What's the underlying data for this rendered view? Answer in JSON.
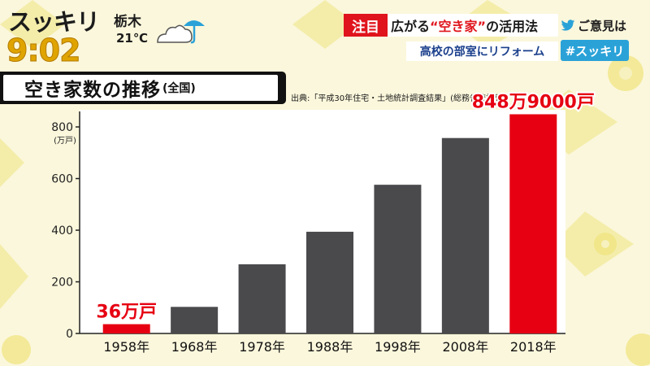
{
  "program": {
    "logo": "スッキリ",
    "clock": "9:02"
  },
  "weather": {
    "location": "栃木",
    "temperature": "21℃",
    "icon": "cloud-umbrella-icon"
  },
  "headline": {
    "badge": "注目",
    "text_before": "広がる",
    "text_emphasis": "“空き家”",
    "text_after": "の活用法",
    "sub": "高校の部室にリフォーム",
    "feedback": "ご意見は",
    "hashtag": "#スッキリ"
  },
  "chart_title": {
    "main": "空き家数の推移",
    "suffix": "(全国)",
    "source": "出典:「平成30年住宅・土地統計調査結果」(総務省統計局)"
  },
  "chart_data": {
    "type": "bar",
    "title": "空き家数の推移(全国)",
    "ylabel": "(万戸)",
    "xlabel": "",
    "ylim": [
      0,
      860
    ],
    "yticks": [
      0,
      200,
      400,
      600,
      800
    ],
    "categories": [
      "1958年",
      "1968年",
      "1978年",
      "1988年",
      "1998年",
      "2008年",
      "2018年"
    ],
    "values": [
      36,
      103,
      268,
      394,
      576,
      757,
      849
    ],
    "highlight_indices": [
      0,
      6
    ],
    "annotations": [
      {
        "index": 0,
        "text": "36万戸"
      },
      {
        "index": 6,
        "text": "848万9000戸"
      }
    ],
    "colors": {
      "default": "#4a4a4d",
      "highlight": "#e60012"
    },
    "grid": false,
    "legend": "none"
  }
}
